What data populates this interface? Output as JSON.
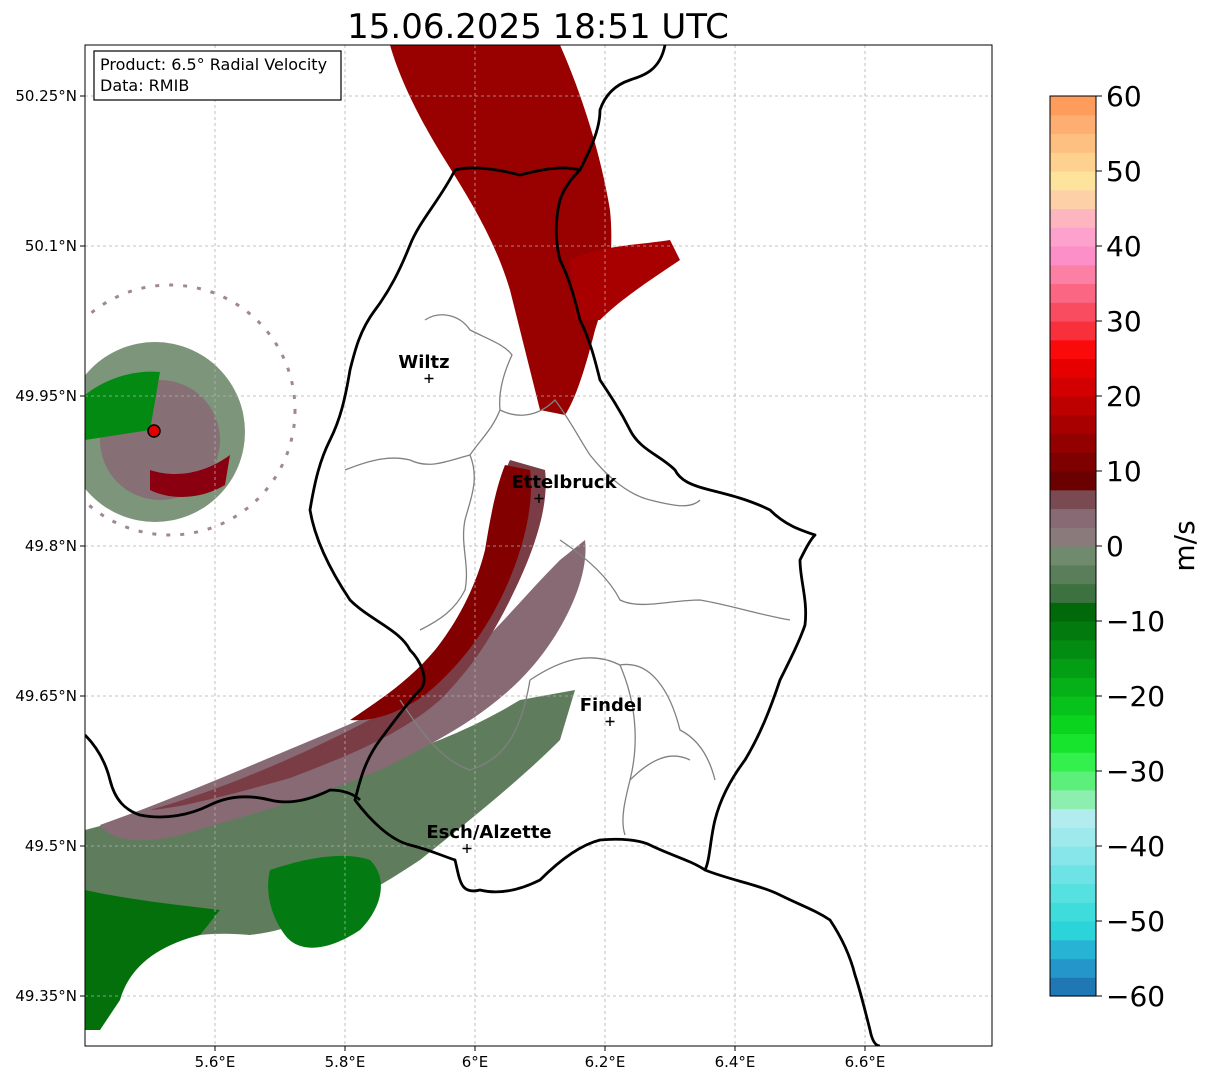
{
  "title": "15.06.2025 18:51 UTC",
  "info_box": {
    "product": "Product: 6.5° Radial Velocity",
    "data": "Data: RMIB"
  },
  "axes": {
    "x_ticks": [
      "5.6°E",
      "5.8°E",
      "6°E",
      "6.2°E",
      "6.4°E",
      "6.6°E"
    ],
    "y_ticks": [
      "50.25°N",
      "50.1°N",
      "49.95°N",
      "49.8°N",
      "49.65°N",
      "49.5°N",
      "49.35°N"
    ],
    "xlim": [
      5.4,
      6.8
    ],
    "ylim": [
      49.3,
      50.3
    ],
    "grid": true
  },
  "cities": [
    {
      "name": "Wiltz",
      "lon": 5.93,
      "lat": 49.97
    },
    {
      "name": "Ettelbruck",
      "lon": 6.1,
      "lat": 49.85
    },
    {
      "name": "Findel",
      "lon": 6.21,
      "lat": 49.63
    },
    {
      "name": "Esch/Alzette",
      "lon": 5.99,
      "lat": 49.5
    }
  ],
  "radar_site": {
    "lon": 5.505,
    "lat": 49.915,
    "color": "#e00000"
  },
  "colorbar": {
    "label": "m/s",
    "min": -60,
    "max": 60,
    "ticks": [
      "60",
      "50",
      "40",
      "30",
      "20",
      "10",
      "0",
      "−10",
      "−20",
      "−30",
      "−40",
      "−50",
      "−60"
    ],
    "tick_values": [
      60,
      50,
      40,
      30,
      20,
      10,
      0,
      -10,
      -20,
      -30,
      -40,
      -50,
      -60
    ],
    "bands": [
      {
        "from": -60,
        "to": -57.5,
        "color": "#1f77b4"
      },
      {
        "from": -57.5,
        "to": -55,
        "color": "#2596c9"
      },
      {
        "from": -55,
        "to": -52.5,
        "color": "#27b4d4"
      },
      {
        "from": -52.5,
        "to": -50,
        "color": "#2bd4d8"
      },
      {
        "from": -50,
        "to": -47.5,
        "color": "#3fdcdc"
      },
      {
        "from": -47.5,
        "to": -45,
        "color": "#56e0e0"
      },
      {
        "from": -45,
        "to": -42.5,
        "color": "#6ee3e5"
      },
      {
        "from": -42.5,
        "to": -40,
        "color": "#86e6ea"
      },
      {
        "from": -40,
        "to": -37.5,
        "color": "#9ee9ec"
      },
      {
        "from": -37.5,
        "to": -35,
        "color": "#b3ecef"
      },
      {
        "from": -35,
        "to": -32.5,
        "color": "#8cefb0"
      },
      {
        "from": -32.5,
        "to": -30,
        "color": "#5cf07a"
      },
      {
        "from": -30,
        "to": -27.5,
        "color": "#33f04f"
      },
      {
        "from": -27.5,
        "to": -25,
        "color": "#17e52d"
      },
      {
        "from": -25,
        "to": -22.5,
        "color": "#0ad41d"
      },
      {
        "from": -22.5,
        "to": -20,
        "color": "#06c21a"
      },
      {
        "from": -20,
        "to": -17.5,
        "color": "#05b018"
      },
      {
        "from": -17.5,
        "to": -15,
        "color": "#049e15"
      },
      {
        "from": -15,
        "to": -12.5,
        "color": "#038c12"
      },
      {
        "from": -12.5,
        "to": -10,
        "color": "#027a0e"
      },
      {
        "from": -10,
        "to": -7.5,
        "color": "#01690a"
      },
      {
        "from": -7.5,
        "to": -5,
        "color": "#3d7240"
      },
      {
        "from": -5,
        "to": -2.5,
        "color": "#5a7d5a"
      },
      {
        "from": -2.5,
        "to": 0,
        "color": "#6f8a6c"
      },
      {
        "from": 0,
        "to": 2.5,
        "color": "#8a7a7c"
      },
      {
        "from": 2.5,
        "to": 5,
        "color": "#876a74"
      },
      {
        "from": 5,
        "to": 7.5,
        "color": "#7a4a52"
      },
      {
        "from": 7.5,
        "to": 10,
        "color": "#6a0000"
      },
      {
        "from": 10,
        "to": 12.5,
        "color": "#7f0000"
      },
      {
        "from": 12.5,
        "to": 15,
        "color": "#930000"
      },
      {
        "from": 15,
        "to": 17.5,
        "color": "#a80000"
      },
      {
        "from": 17.5,
        "to": 20,
        "color": "#bd0000"
      },
      {
        "from": 20,
        "to": 22.5,
        "color": "#d20000"
      },
      {
        "from": 22.5,
        "to": 25,
        "color": "#e60000"
      },
      {
        "from": 25,
        "to": 27.5,
        "color": "#fa0a0a"
      },
      {
        "from": 27.5,
        "to": 30,
        "color": "#f8303c"
      },
      {
        "from": 30,
        "to": 32.5,
        "color": "#f94c60"
      },
      {
        "from": 32.5,
        "to": 35,
        "color": "#fb6683"
      },
      {
        "from": 35,
        "to": 37.5,
        "color": "#fc7fa6"
      },
      {
        "from": 37.5,
        "to": 40,
        "color": "#fd8fc8"
      },
      {
        "from": 40,
        "to": 42.5,
        "color": "#fda2cc"
      },
      {
        "from": 42.5,
        "to": 45,
        "color": "#fdb6bf"
      },
      {
        "from": 45,
        "to": 47.5,
        "color": "#fdd0a8"
      },
      {
        "from": 47.5,
        "to": 50,
        "color": "#fee39c"
      },
      {
        "from": 50,
        "to": 52.5,
        "color": "#fed28e"
      },
      {
        "from": 52.5,
        "to": 55,
        "color": "#fec080"
      },
      {
        "from": 55,
        "to": 57.5,
        "color": "#feae70"
      },
      {
        "from": 57.5,
        "to": 60,
        "color": "#fe9c5c"
      }
    ]
  }
}
